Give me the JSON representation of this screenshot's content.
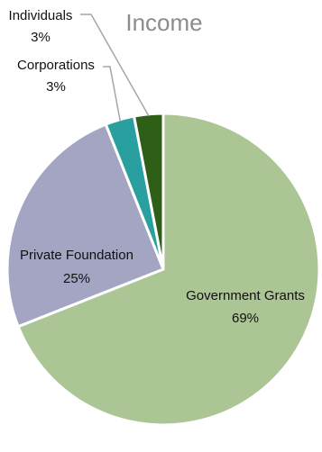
{
  "chart_data": {
    "type": "pie",
    "title": "Income",
    "slices": [
      {
        "label": "Government Grants",
        "value": 69,
        "value_label": "69%",
        "color": "#abc595"
      },
      {
        "label": "Private Foundation",
        "value": 25,
        "value_label": "25%",
        "color": "#a4a4c3"
      },
      {
        "label": "Corporations",
        "value": 3,
        "value_label": "3%",
        "color": "#2a9f9f"
      },
      {
        "label": "Individuals",
        "value": 3,
        "value_label": "3%",
        "color": "#2f5e16"
      }
    ],
    "start_angle_deg": 90,
    "direction": "clockwise",
    "slice_border_color": "#ffffff",
    "leader_line_color": "#a6a6a6"
  }
}
